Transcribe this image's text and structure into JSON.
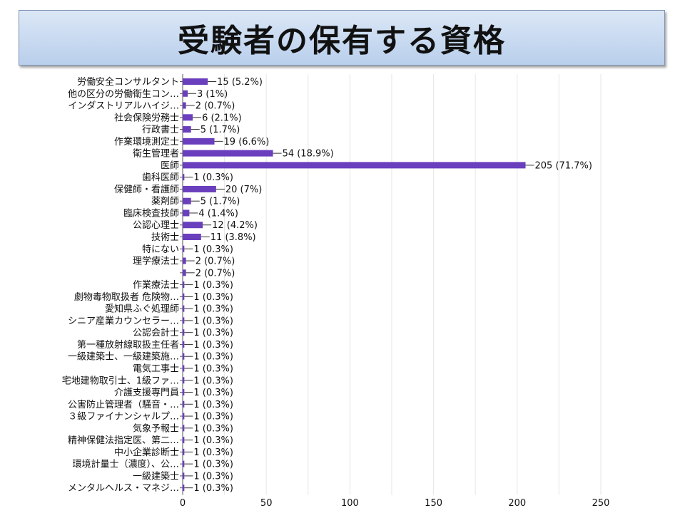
{
  "title": "受験者の保有する資格",
  "colors": {
    "bar": "#6a3fbd",
    "banner_top": "#dbe7f6",
    "banner_bottom": "#b9cfec",
    "grid": "#e6e6e6"
  },
  "chart_data": {
    "type": "bar",
    "orientation": "horizontal",
    "xlim": [
      0,
      250
    ],
    "xticks": [
      0,
      50,
      100,
      150,
      200,
      250
    ],
    "grid": true,
    "categories": [
      "労働安全コンサルタント",
      "他の区分の労働衛生コン…",
      "インダストリアルハイジ…",
      "社会保険労務士",
      "行政書士",
      "作業環境測定士",
      "衛生管理者",
      "医師",
      "歯科医師",
      "保健師・看護師",
      "薬剤師",
      "臨床検査技師",
      "公認心理士",
      "技術士",
      "特にない",
      "理学療法士",
      "",
      "作業療法士",
      "劇物毒物取扱者 危険物…",
      "愛知県ふぐ処理師",
      "シニア産業カウンセラー…",
      "公認会計士",
      "第一種放射線取扱主任者",
      "一級建築士、一級建築施…",
      "電気工事士",
      "宅地建物取引士、1級ファ…",
      "介護支援専門員",
      "公害防止管理者（騒音・…",
      "３級ファイナンシャルプ…",
      "気象予報士",
      "精神保健法指定医、第二…",
      "中小企業診断士",
      "環境計量士（濃度）、公…",
      "一級建築士",
      "メンタルヘルス・マネジ…"
    ],
    "values": [
      15,
      3,
      2,
      6,
      5,
      19,
      54,
      205,
      1,
      20,
      5,
      4,
      12,
      11,
      1,
      2,
      2,
      1,
      1,
      1,
      1,
      1,
      1,
      1,
      1,
      1,
      1,
      1,
      1,
      1,
      1,
      1,
      1,
      1,
      1
    ],
    "data_labels": [
      "15 (5.2%)",
      "3 (1%)",
      "2 (0.7%)",
      "6 (2.1%)",
      "5 (1.7%)",
      "19 (6.6%)",
      "54 (18.9%)",
      "205 (71.7%)",
      "1 (0.3%)",
      "20 (7%)",
      "5 (1.7%)",
      "4 (1.4%)",
      "12 (4.2%)",
      "11 (3.8%)",
      "1 (0.3%)",
      "2 (0.7%)",
      "2 (0.7%)",
      "1 (0.3%)",
      "1 (0.3%)",
      "1 (0.3%)",
      "1 (0.3%)",
      "1 (0.3%)",
      "1 (0.3%)",
      "1 (0.3%)",
      "1 (0.3%)",
      "1 (0.3%)",
      "1 (0.3%)",
      "1 (0.3%)",
      "1 (0.3%)",
      "1 (0.3%)",
      "1 (0.3%)",
      "1 (0.3%)",
      "1 (0.3%)",
      "1 (0.3%)",
      "1 (0.3%)"
    ]
  }
}
